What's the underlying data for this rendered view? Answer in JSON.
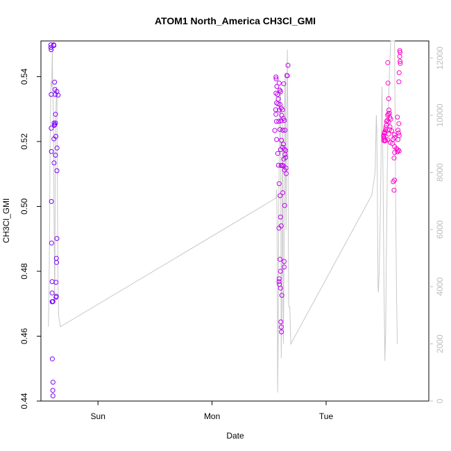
{
  "chart_data": {
    "type": "scatter",
    "title": "ATOM1 North_America CH3Cl_GMI",
    "xlabel": "Date",
    "ylabel": "CH3Cl_GMI",
    "x_tick_labels": [
      "Sun",
      "Mon",
      "Tue"
    ],
    "x_tick_values_days": [
      1,
      2,
      3
    ],
    "xlim_days": [
      0.5,
      3.9
    ],
    "ylim": [
      0.44,
      0.551
    ],
    "y_ticks": [
      0.44,
      0.46,
      0.48,
      0.5,
      0.52,
      0.54
    ],
    "y_tick_labels": [
      "0.44",
      "0.46",
      "0.48",
      "0.50",
      "0.52",
      "0.54"
    ],
    "y2lim": [
      0,
      12600
    ],
    "y2_ticks": [
      0,
      2000,
      4000,
      6000,
      8000,
      10000,
      12000
    ],
    "y2_tick_labels": [
      "0",
      "2000",
      "4000",
      "6000",
      "8000",
      "10000",
      "12000"
    ],
    "colors": {
      "early": "#7a00ff",
      "mid": "#bb00ee",
      "late": "#ff00cc",
      "altitude_line": "#c8c8c8",
      "axis": "#000000",
      "y2_axis": "#bdbdbd"
    },
    "series": [
      {
        "kind": "points",
        "points": [
          [
            0.587,
            0.5498
          ],
          [
            0.587,
            0.549
          ],
          [
            0.59,
            0.5483
          ],
          [
            0.612,
            0.5498
          ],
          [
            0.614,
            0.5496
          ],
          [
            0.59,
            0.5345
          ],
          [
            0.62,
            0.5383
          ],
          [
            0.622,
            0.536
          ],
          [
            0.626,
            0.5345
          ],
          [
            0.64,
            0.5354
          ],
          [
            0.65,
            0.5343
          ],
          [
            0.615,
            0.5257
          ],
          [
            0.617,
            0.525
          ],
          [
            0.621,
            0.5252
          ],
          [
            0.628,
            0.5257
          ],
          [
            0.59,
            0.5241
          ],
          [
            0.631,
            0.5216
          ],
          [
            0.614,
            0.5208
          ],
          [
            0.641,
            0.518
          ],
          [
            0.592,
            0.5169
          ],
          [
            0.627,
            0.5158
          ],
          [
            0.615,
            0.5134
          ],
          [
            0.64,
            0.511
          ],
          [
            0.592,
            0.5015
          ],
          [
            0.64,
            0.4901
          ],
          [
            0.593,
            0.4887
          ],
          [
            0.635,
            0.484
          ],
          [
            0.637,
            0.4827
          ],
          [
            0.632,
            0.4766
          ],
          [
            0.598,
            0.4768
          ],
          [
            0.598,
            0.4733
          ],
          [
            0.635,
            0.4723
          ],
          [
            0.632,
            0.472
          ],
          [
            0.598,
            0.4706
          ],
          [
            0.602,
            0.4706
          ],
          [
            0.605,
            0.4707
          ],
          [
            0.6,
            0.453
          ],
          [
            0.606,
            0.4458
          ],
          [
            0.604,
            0.4433
          ],
          [
            0.605,
            0.4416
          ],
          [
            0.628,
            0.5284
          ]
        ]
      },
      {
        "kind": "points",
        "points": [
          [
            2.56,
            0.5399
          ],
          [
            2.562,
            0.5393
          ],
          [
            2.588,
            0.538
          ],
          [
            2.628,
            0.5378
          ],
          [
            2.568,
            0.537
          ],
          [
            2.595,
            0.5358
          ],
          [
            2.56,
            0.5349
          ],
          [
            2.574,
            0.5345
          ],
          [
            2.6,
            0.5353
          ],
          [
            2.58,
            0.5331
          ],
          [
            2.565,
            0.5319
          ],
          [
            2.578,
            0.5316
          ],
          [
            2.596,
            0.5314
          ],
          [
            2.558,
            0.5298
          ],
          [
            2.59,
            0.5297
          ],
          [
            2.606,
            0.5303
          ],
          [
            2.618,
            0.5298
          ],
          [
            2.56,
            0.5284
          ],
          [
            2.61,
            0.5281
          ],
          [
            2.624,
            0.5271
          ],
          [
            2.633,
            0.5265
          ],
          [
            2.565,
            0.5262
          ],
          [
            2.585,
            0.5262
          ],
          [
            2.606,
            0.5264
          ],
          [
            2.55,
            0.5234
          ],
          [
            2.595,
            0.5237
          ],
          [
            2.62,
            0.5235
          ],
          [
            2.64,
            0.5235
          ],
          [
            2.566,
            0.5206
          ],
          [
            2.608,
            0.5204
          ],
          [
            2.625,
            0.5192
          ],
          [
            2.6,
            0.5175
          ],
          [
            2.618,
            0.5182
          ],
          [
            2.635,
            0.5176
          ],
          [
            2.645,
            0.5172
          ],
          [
            2.64,
            0.516
          ],
          [
            2.645,
            0.5151
          ],
          [
            2.576,
            0.5163
          ],
          [
            2.628,
            0.5146
          ],
          [
            2.582,
            0.5127
          ],
          [
            2.605,
            0.5126
          ],
          [
            2.615,
            0.5127
          ],
          [
            2.625,
            0.5125
          ],
          [
            2.635,
            0.5112
          ],
          [
            2.65,
            0.5101
          ],
          [
            2.648,
            0.5118
          ],
          [
            2.588,
            0.507
          ],
          [
            2.62,
            0.5042
          ],
          [
            2.596,
            0.5033
          ],
          [
            2.636,
            0.5003
          ],
          [
            2.6,
            0.4967
          ],
          [
            2.606,
            0.494
          ],
          [
            2.586,
            0.4933
          ],
          [
            2.596,
            0.4837
          ],
          [
            2.632,
            0.483
          ],
          [
            2.632,
            0.4813
          ],
          [
            2.6,
            0.48
          ],
          [
            2.588,
            0.4777
          ],
          [
            2.587,
            0.4768
          ],
          [
            2.59,
            0.476
          ],
          [
            2.6,
            0.4748
          ],
          [
            2.612,
            0.4726
          ],
          [
            2.603,
            0.4644
          ],
          [
            2.606,
            0.4628
          ],
          [
            2.608,
            0.4613
          ],
          [
            2.66,
            0.5403
          ],
          [
            2.665,
            0.5435
          ],
          [
            2.656,
            0.5403
          ]
        ]
      },
      {
        "kind": "points",
        "points": [
          [
            3.645,
            0.548
          ],
          [
            3.648,
            0.5475
          ],
          [
            3.645,
            0.5462
          ],
          [
            3.648,
            0.5447
          ],
          [
            3.65,
            0.5441
          ],
          [
            3.54,
            0.5443
          ],
          [
            3.64,
            0.5412
          ],
          [
            3.638,
            0.5384
          ],
          [
            3.542,
            0.538
          ],
          [
            3.548,
            0.5332
          ],
          [
            3.55,
            0.5297
          ],
          [
            3.556,
            0.5287
          ],
          [
            3.545,
            0.5285
          ],
          [
            3.54,
            0.5281
          ],
          [
            3.558,
            0.5274
          ],
          [
            3.566,
            0.5269
          ],
          [
            3.625,
            0.5275
          ],
          [
            3.638,
            0.5255
          ],
          [
            3.548,
            0.526
          ],
          [
            3.53,
            0.5262
          ],
          [
            3.535,
            0.5265
          ],
          [
            3.528,
            0.525
          ],
          [
            3.524,
            0.5243
          ],
          [
            3.52,
            0.5235
          ],
          [
            3.515,
            0.5229
          ],
          [
            3.51,
            0.5225
          ],
          [
            3.505,
            0.5219
          ],
          [
            3.555,
            0.5237
          ],
          [
            3.56,
            0.5245
          ],
          [
            3.574,
            0.5233
          ],
          [
            3.63,
            0.5235
          ],
          [
            3.636,
            0.5226
          ],
          [
            3.64,
            0.5218
          ],
          [
            3.63,
            0.5206
          ],
          [
            3.6,
            0.5212
          ],
          [
            3.598,
            0.5221
          ],
          [
            3.587,
            0.5207
          ],
          [
            3.58,
            0.5194
          ],
          [
            3.562,
            0.5197
          ],
          [
            3.54,
            0.5205
          ],
          [
            3.515,
            0.5202
          ],
          [
            3.505,
            0.5203
          ],
          [
            3.6,
            0.5184
          ],
          [
            3.618,
            0.5178
          ],
          [
            3.63,
            0.5174
          ],
          [
            3.6,
            0.5166
          ],
          [
            3.625,
            0.5168
          ],
          [
            3.64,
            0.5171
          ],
          [
            3.595,
            0.5149
          ],
          [
            3.52,
            0.5203
          ],
          [
            3.508,
            0.521
          ],
          [
            3.588,
            0.5076
          ],
          [
            3.6,
            0.5081
          ],
          [
            3.595,
            0.505
          ],
          [
            3.505,
            0.5216
          ],
          [
            3.51,
            0.5227
          ],
          [
            3.548,
            0.5223
          ]
        ]
      }
    ],
    "altitude_line": [
      [
        0.565,
        2600
      ],
      [
        0.57,
        3500
      ],
      [
        0.575,
        5500
      ],
      [
        0.58,
        9000
      ],
      [
        0.585,
        10500
      ],
      [
        0.588,
        11200
      ],
      [
        0.595,
        11000
      ],
      [
        0.6,
        12400
      ],
      [
        0.603,
        11000
      ],
      [
        0.606,
        10600
      ],
      [
        0.61,
        9500
      ],
      [
        0.612,
        8000
      ],
      [
        0.615,
        6500
      ],
      [
        0.618,
        5000
      ],
      [
        0.62,
        3500
      ],
      [
        0.622,
        4500
      ],
      [
        0.625,
        8000
      ],
      [
        0.628,
        9500
      ],
      [
        0.632,
        10200
      ],
      [
        0.636,
        10800
      ],
      [
        0.64,
        11000
      ],
      [
        0.645,
        7000
      ],
      [
        0.65,
        4000
      ],
      [
        0.655,
        3000
      ],
      [
        0.67,
        2600
      ],
      [
        2.56,
        7100
      ],
      [
        2.562,
        7100
      ],
      [
        2.566,
        7400
      ],
      [
        2.57,
        6500
      ],
      [
        2.575,
        300
      ],
      [
        2.58,
        2300
      ],
      [
        2.585,
        7100
      ],
      [
        2.59,
        9000
      ],
      [
        2.595,
        10700
      ],
      [
        2.6,
        11000
      ],
      [
        2.603,
        6000
      ],
      [
        2.606,
        1500
      ],
      [
        2.61,
        3000
      ],
      [
        2.615,
        6500
      ],
      [
        2.618,
        10000
      ],
      [
        2.62,
        8000
      ],
      [
        2.623,
        3300
      ],
      [
        2.626,
        2000
      ],
      [
        2.63,
        4500
      ],
      [
        2.634,
        7500
      ],
      [
        2.638,
        11000
      ],
      [
        2.642,
        11500
      ],
      [
        2.645,
        8000
      ],
      [
        2.648,
        6000
      ],
      [
        2.652,
        8500
      ],
      [
        2.656,
        10000
      ],
      [
        2.66,
        12300
      ],
      [
        2.664,
        10200
      ],
      [
        2.668,
        6500
      ],
      [
        2.672,
        3300
      ],
      [
        2.678,
        3300
      ],
      [
        2.682,
        3300
      ],
      [
        2.69,
        2000
      ],
      [
        3.4,
        7200
      ],
      [
        3.43,
        8000
      ],
      [
        3.435,
        9000
      ],
      [
        3.44,
        10000
      ],
      [
        3.444,
        9500
      ],
      [
        3.448,
        8000
      ],
      [
        3.455,
        4000
      ],
      [
        3.458,
        3800
      ],
      [
        3.465,
        4500
      ],
      [
        3.47,
        5500
      ],
      [
        3.475,
        6500
      ],
      [
        3.48,
        8000
      ],
      [
        3.483,
        9000
      ],
      [
        3.486,
        10000
      ],
      [
        3.49,
        11000
      ],
      [
        3.493,
        10000
      ],
      [
        3.5,
        7500
      ],
      [
        3.507,
        4000
      ],
      [
        3.512,
        2500
      ],
      [
        3.515,
        1400
      ],
      [
        3.522,
        2500
      ],
      [
        3.528,
        5000
      ],
      [
        3.536,
        8000
      ],
      [
        3.542,
        9500
      ],
      [
        3.548,
        10500
      ],
      [
        3.555,
        11500
      ],
      [
        3.56,
        12000
      ],
      [
        3.566,
        12600
      ],
      [
        3.6,
        12600
      ],
      [
        3.606,
        9000
      ],
      [
        3.612,
        6000
      ],
      [
        3.618,
        3500
      ],
      [
        3.624,
        2000
      ]
    ]
  }
}
